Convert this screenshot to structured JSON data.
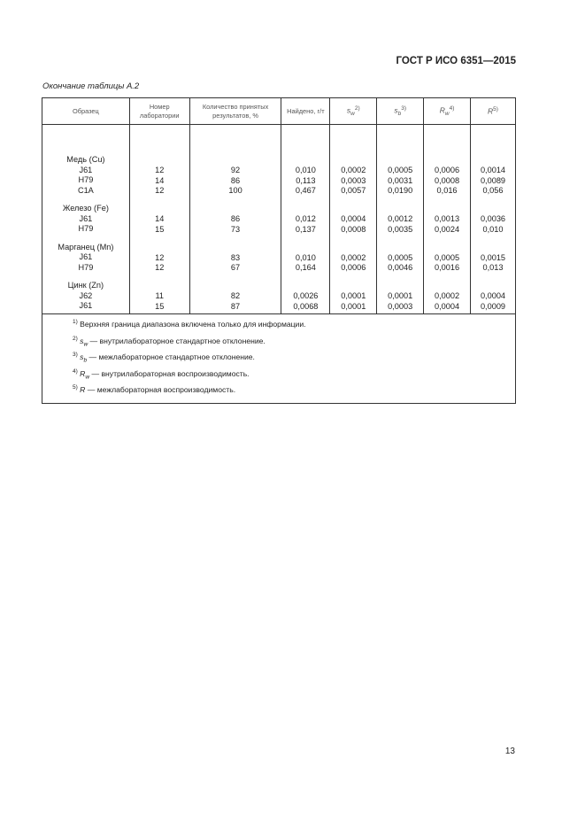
{
  "header": "ГОСТ Р ИСО 6351—2015",
  "caption": "Окончание таблицы А.2",
  "columns": [
    "Образец",
    "Номер лаборатории",
    "Количество принятых результатов, %",
    "Найдено, г/т",
    "s",
    "s",
    "R",
    "R"
  ],
  "column_subs": [
    "",
    "",
    "",
    "",
    "w",
    "b",
    "w",
    ""
  ],
  "column_sups": [
    "",
    "",
    "",
    "",
    "2)",
    "3)",
    "4)",
    "5)"
  ],
  "groups": [
    {
      "title": "Медь (Cu)",
      "rows": [
        [
          "J61",
          "12",
          "92",
          "0,010",
          "0,0002",
          "0,0005",
          "0,0006",
          "0,0014"
        ],
        [
          "H79",
          "14",
          "86",
          "0,113",
          "0,0003",
          "0,0031",
          "0,0008",
          "0,0089"
        ],
        [
          "C1A",
          "12",
          "100",
          "0,467",
          "0,0057",
          "0,0190",
          "0,016",
          "0,056"
        ]
      ]
    },
    {
      "title": "Железо (Fe)",
      "rows": [
        [
          "J61",
          "14",
          "86",
          "0,012",
          "0,0004",
          "0,0012",
          "0,0013",
          "0,0036"
        ],
        [
          "H79",
          "15",
          "73",
          "0,137",
          "0,0008",
          "0,0035",
          "0,0024",
          "0,010"
        ]
      ]
    },
    {
      "title": "Марганец (Mn)",
      "rows": [
        [
          "J61",
          "12",
          "83",
          "0,010",
          "0,0002",
          "0,0005",
          "0,0005",
          "0,0015"
        ],
        [
          "H79",
          "12",
          "67",
          "0,164",
          "0,0006",
          "0,0046",
          "0,0016",
          "0,013"
        ]
      ]
    },
    {
      "title": "Цинк (Zn)",
      "rows": [
        [
          "J62",
          "11",
          "82",
          "0,0026",
          "0,0001",
          "0,0001",
          "0,0002",
          "0,0004"
        ],
        [
          "J61",
          "15",
          "87",
          "0,0068",
          "0,0001",
          "0,0003",
          "0,0004",
          "0,0009"
        ]
      ]
    }
  ],
  "notes": [
    {
      "mark": "1)",
      "sym": "",
      "sub": "",
      "text": "Верхняя граница диапазона включена только для информации."
    },
    {
      "mark": "2)",
      "sym": "s",
      "sub": "w",
      "text": " — внутрилабораторное стандартное отклонение."
    },
    {
      "mark": "3)",
      "sym": "s",
      "sub": "b",
      "text": " — межлабораторное стандартное отклонение."
    },
    {
      "mark": "4)",
      "sym": "R",
      "sub": "w",
      "text": " — внутрилабораторная воспроизводимость."
    },
    {
      "mark": "5)",
      "sym": "R",
      "sub": "",
      "text": " — межлабораторная воспроизводимость."
    }
  ],
  "page_number": "13"
}
